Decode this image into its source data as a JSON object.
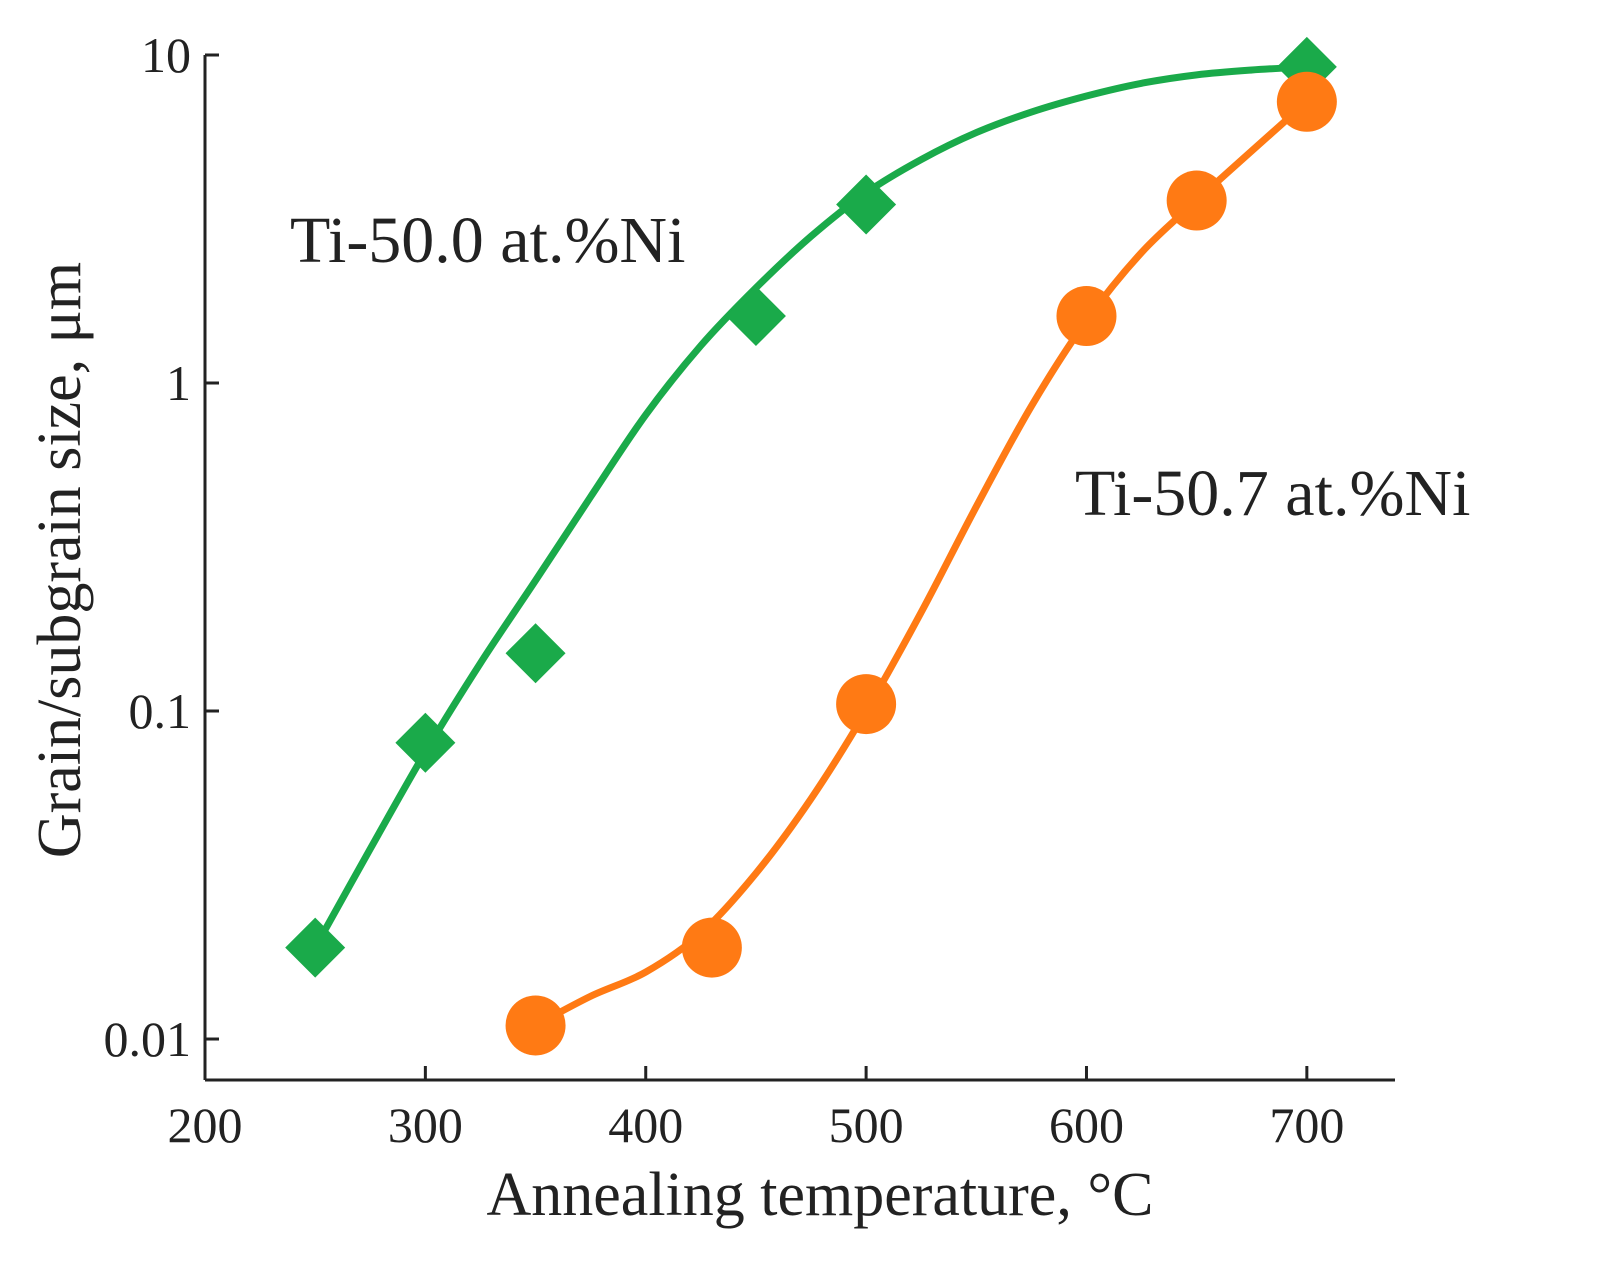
{
  "chart_data": {
    "type": "line",
    "xlabel": "Annealing temperature, °C",
    "ylabel": "Grain/subgrain size, μm",
    "xscale": "linear",
    "yscale": "log",
    "xlim": [
      200,
      740
    ],
    "ylim": [
      0.0075,
      10
    ],
    "xticks": [
      200,
      300,
      400,
      500,
      600,
      700
    ],
    "xtick_labels": [
      "200",
      "300",
      "400",
      "500",
      "600",
      "700"
    ],
    "yticks": [
      0.01,
      0.1,
      1,
      10
    ],
    "ytick_labels": [
      "0.01",
      "0.1",
      "1",
      "10"
    ],
    "grid": false,
    "series": [
      {
        "name": "Ti-50.0 at.%Ni",
        "marker": "diamond",
        "color": "#1aaa4a",
        "x": [
          250,
          300,
          350,
          450,
          500,
          700
        ],
        "y": [
          0.019,
          0.08,
          0.15,
          1.6,
          3.5,
          9.2
        ],
        "curve_x": [
          250,
          275,
          300,
          325,
          350,
          375,
          400,
          425,
          450,
          475,
          500,
          525,
          550,
          575,
          600,
          625,
          650,
          675,
          700
        ],
        "curve_y": [
          0.019,
          0.038,
          0.075,
          0.14,
          0.25,
          0.45,
          0.8,
          1.3,
          1.95,
          2.8,
          3.8,
          4.8,
          5.8,
          6.7,
          7.5,
          8.2,
          8.7,
          9.0,
          9.2
        ]
      },
      {
        "name": "Ti-50.7 at.%Ni",
        "marker": "circle",
        "color": "#ff7a14",
        "x": [
          350,
          430,
          500,
          600,
          650,
          700
        ],
        "y": [
          0.011,
          0.019,
          0.105,
          1.6,
          3.6,
          7.2
        ],
        "curve_x": [
          350,
          375,
          400,
          425,
          450,
          475,
          500,
          525,
          550,
          575,
          600,
          625,
          650,
          675,
          700
        ],
        "curve_y": [
          0.011,
          0.0135,
          0.016,
          0.021,
          0.032,
          0.054,
          0.1,
          0.2,
          0.42,
          0.85,
          1.55,
          2.5,
          3.6,
          5.1,
          7.2
        ]
      }
    ]
  }
}
